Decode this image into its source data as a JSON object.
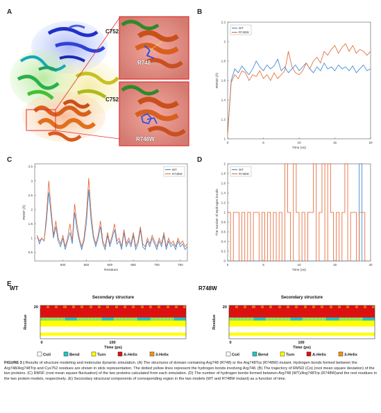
{
  "figure": {
    "panel_labels": [
      "A",
      "B",
      "C",
      "D",
      "E"
    ],
    "caption": {
      "lead": "FIGURE 3 |",
      "text": "Results of structure modeling and molecular dynamic simulation. (A) The structures of domain containing Arg748 (R748) or the Arg748Trp (R748W) mutant. Hydrogen bonds formed between the Arg748/Arg748Trp and Cys752 residues are shown in stick representation. The dotted yellow lines represent the hydrogen bonds involving Arg748. (B) The trajectory of RMSD (Cα) (root mean square deviation) of the two proteins. (C) RMSF (root mean square fluctuation) of the two proteins calculated from each simulation. (D) The number of hydrogen bonds formed between Arg748 (WT)/Arg748Trp (R748W)and the rest residues in the two protein models, respectively. (E) Secondary structural components of corresponding region in the two models (WT and R748W mutant) as a function of time."
    }
  },
  "panelA": {
    "inset_labels": {
      "c752_top": "C752",
      "r748": "R748",
      "c752_bottom": "C752",
      "r748w": "R748W"
    }
  },
  "colors": {
    "wt": "#2f7fd1",
    "mut": "#e0602a",
    "helix": "#dd1010",
    "turn": "#ffff00",
    "bend": "#23c4c4",
    "three_helix": "#f0941a",
    "coil": "#ffffff"
  },
  "chart_data": [
    {
      "id": "B",
      "type": "line",
      "xlabel": "Time (ns)",
      "ylabel": "RMSD (Å)",
      "xlim": [
        0,
        20
      ],
      "ylim": [
        1.0,
        2.2
      ],
      "xticks": [
        "0",
        "5",
        "10",
        "15",
        "20"
      ],
      "yticks": [
        "1",
        "1.2",
        "1.4",
        "1.6",
        "1.8",
        "2",
        "2.2"
      ],
      "legend": "top-left",
      "x": [
        0,
        0.5,
        1,
        1.5,
        2,
        2.5,
        3,
        3.5,
        4,
        4.5,
        5,
        5.5,
        6,
        6.5,
        7,
        7.5,
        8,
        8.5,
        9,
        9.5,
        10,
        10.5,
        11,
        11.5,
        12,
        12.5,
        13,
        13.5,
        14,
        14.5,
        15,
        15.5,
        16,
        16.5,
        17,
        17.5,
        18,
        18.5,
        19,
        19.5,
        20
      ],
      "series": [
        {
          "name": "WT",
          "values": [
            1.05,
            1.6,
            1.72,
            1.68,
            1.75,
            1.7,
            1.66,
            1.72,
            1.8,
            1.74,
            1.7,
            1.76,
            1.72,
            1.75,
            1.82,
            1.7,
            1.74,
            1.68,
            1.72,
            1.76,
            1.7,
            1.74,
            1.78,
            1.72,
            1.68,
            1.74,
            1.7,
            1.78,
            1.72,
            1.74,
            1.7,
            1.76,
            1.72,
            1.74,
            1.7,
            1.75,
            1.68,
            1.72,
            1.76,
            1.7,
            1.72
          ]
        },
        {
          "name": "R748W",
          "values": [
            1.05,
            1.58,
            1.66,
            1.62,
            1.7,
            1.68,
            1.6,
            1.66,
            1.64,
            1.7,
            1.62,
            1.66,
            1.6,
            1.68,
            1.62,
            1.66,
            1.7,
            1.9,
            1.74,
            1.68,
            1.66,
            1.7,
            1.78,
            1.72,
            1.8,
            1.84,
            1.78,
            1.9,
            1.86,
            1.92,
            1.96,
            1.88,
            1.94,
            1.98,
            1.9,
            1.96,
            1.88,
            1.92,
            1.9,
            1.86,
            1.9
          ]
        }
      ]
    },
    {
      "id": "C",
      "type": "line",
      "xlabel": "Residues",
      "ylabel": "RMSF (Å)",
      "xlim": [
        440,
        765
      ],
      "ylim": [
        0.2,
        3.6
      ],
      "xticks": [
        "500",
        "550",
        "600",
        "650",
        "700",
        "750"
      ],
      "yticks": [
        "0.5",
        "1",
        "1.5",
        "2",
        "2.5",
        "3",
        "3.5"
      ],
      "legend": "top-right",
      "x": [
        445,
        450,
        455,
        460,
        465,
        470,
        475,
        480,
        485,
        490,
        495,
        500,
        505,
        510,
        515,
        520,
        525,
        530,
        535,
        540,
        545,
        550,
        555,
        560,
        565,
        570,
        575,
        580,
        585,
        590,
        595,
        600,
        605,
        610,
        615,
        620,
        625,
        630,
        635,
        640,
        645,
        650,
        655,
        660,
        665,
        670,
        675,
        680,
        685,
        690,
        695,
        700,
        705,
        710,
        715,
        720,
        725,
        730,
        735,
        740,
        745,
        750,
        755,
        760,
        765
      ],
      "series": [
        {
          "name": "WT",
          "values": [
            1.1,
            0.8,
            1.0,
            0.9,
            1.6,
            2.6,
            1.8,
            1.0,
            1.4,
            0.9,
            0.7,
            1.0,
            0.6,
            0.9,
            1.2,
            0.8,
            1.9,
            1.3,
            0.9,
            0.6,
            0.9,
            1.5,
            2.7,
            1.6,
            1.0,
            0.7,
            1.0,
            1.4,
            0.8,
            0.6,
            1.1,
            0.7,
            1.0,
            1.3,
            0.8,
            0.9,
            0.6,
            1.2,
            0.7,
            0.9,
            0.7,
            1.1,
            0.6,
            0.8,
            1.3,
            0.7,
            0.6,
            0.9,
            0.7,
            1.0,
            0.8,
            0.6,
            0.9,
            0.7,
            1.1,
            0.6,
            0.9,
            0.7,
            0.8,
            0.6,
            0.9,
            0.7,
            0.8,
            0.6,
            0.7
          ]
        },
        {
          "name": "R748W",
          "values": [
            1.1,
            0.9,
            1.0,
            0.9,
            1.8,
            3.0,
            2.0,
            1.1,
            1.6,
            1.0,
            0.8,
            1.1,
            0.7,
            1.0,
            1.5,
            0.9,
            2.2,
            1.5,
            1.0,
            0.7,
            1.0,
            1.8,
            3.1,
            1.9,
            1.1,
            0.8,
            1.1,
            1.6,
            0.9,
            0.7,
            1.2,
            0.8,
            1.1,
            1.5,
            0.9,
            1.0,
            0.7,
            1.3,
            0.8,
            1.0,
            0.8,
            1.2,
            0.7,
            0.9,
            1.4,
            0.8,
            0.7,
            1.0,
            0.8,
            1.1,
            0.9,
            0.7,
            1.0,
            0.8,
            1.2,
            0.7,
            1.0,
            0.8,
            0.9,
            0.7,
            1.0,
            0.8,
            0.9,
            0.7,
            0.8
          ]
        }
      ]
    },
    {
      "id": "D",
      "type": "line",
      "xlabel": "Time (ns)",
      "ylabel": "The number of Hydrogen bonds",
      "xlim": [
        0,
        20
      ],
      "ylim": [
        0,
        2
      ],
      "xticks": [
        "0",
        "5",
        "10",
        "15",
        "20"
      ],
      "yticks": [
        "0",
        "0.2",
        "0.4",
        "0.6",
        "0.8",
        "1",
        "1.2",
        "1.4",
        "1.6",
        "1.8",
        "2"
      ],
      "legend": "top-left",
      "x": [
        0,
        0.4,
        0.8,
        1.2,
        1.6,
        2.0,
        2.4,
        2.8,
        3.2,
        3.6,
        4.0,
        4.4,
        4.8,
        5.2,
        5.6,
        6.0,
        6.4,
        6.8,
        7.2,
        7.6,
        8.0,
        8.4,
        8.8,
        9.2,
        9.6,
        10.0,
        10.4,
        10.8,
        11.2,
        11.6,
        12.0,
        12.4,
        12.8,
        13.2,
        13.6,
        14.0,
        14.4,
        14.8,
        15.2,
        15.6,
        16.0,
        16.4,
        16.8,
        17.2,
        17.6,
        18.0,
        18.4,
        18.8,
        19.2,
        19.6,
        20.0
      ],
      "series": [
        {
          "name": "WT",
          "values": [
            0,
            0,
            0,
            0,
            0,
            0,
            0,
            0,
            0,
            0,
            0,
            0,
            0,
            0,
            0,
            0,
            0,
            0,
            0,
            0,
            0,
            0,
            0,
            0,
            0,
            0,
            0,
            0,
            0,
            0,
            0,
            0,
            0,
            0,
            0,
            0,
            0,
            0,
            0,
            0,
            0,
            0,
            0,
            0,
            0,
            0,
            2,
            0,
            0,
            0,
            0
          ]
        },
        {
          "name": "R748W",
          "values": [
            1,
            0,
            1,
            1,
            0,
            1,
            0,
            1,
            0,
            1,
            1,
            0,
            1,
            0,
            1,
            0,
            1,
            0,
            1,
            0,
            2,
            1,
            0,
            2,
            1,
            0,
            1,
            0,
            1,
            1,
            2,
            0,
            1,
            2,
            0,
            2,
            1,
            0,
            1,
            0,
            1,
            2,
            0,
            1,
            1,
            0,
            1,
            1,
            0,
            0,
            0
          ]
        }
      ]
    },
    {
      "id": "E-WT",
      "type": "heatmap",
      "title": "Secondary structure",
      "label": "WT",
      "xlabel": "Time (ps)",
      "ylabel": "Residue",
      "xticks": [
        "0",
        "100"
      ],
      "yticks": [
        "20"
      ],
      "rows_top_to_bottom": [
        "A-Helix",
        "A-Helix",
        "A-Helix",
        "A-Helix",
        "Bend",
        "Turn",
        "Turn",
        "Coil",
        "Coil",
        "Turn",
        "Coil"
      ],
      "legend": [
        "Coil",
        "Bend",
        "Turn",
        "A-Helix",
        "3-Helix"
      ]
    },
    {
      "id": "E-R748W",
      "type": "heatmap",
      "title": "Secondary structure",
      "label": "R748W",
      "xlabel": "Time (ps)",
      "ylabel": "Residue",
      "xticks": [
        "0",
        "100"
      ],
      "yticks": [
        "20"
      ],
      "rows_top_to_bottom": [
        "A-Helix",
        "A-Helix",
        "A-Helix",
        "A-Helix",
        "Bend",
        "Turn",
        "Turn",
        "Coil",
        "Coil",
        "Turn",
        "Coil"
      ],
      "legend": [
        "Coil",
        "Bend",
        "Turn",
        "A-Helix",
        "3-Helix"
      ]
    }
  ]
}
